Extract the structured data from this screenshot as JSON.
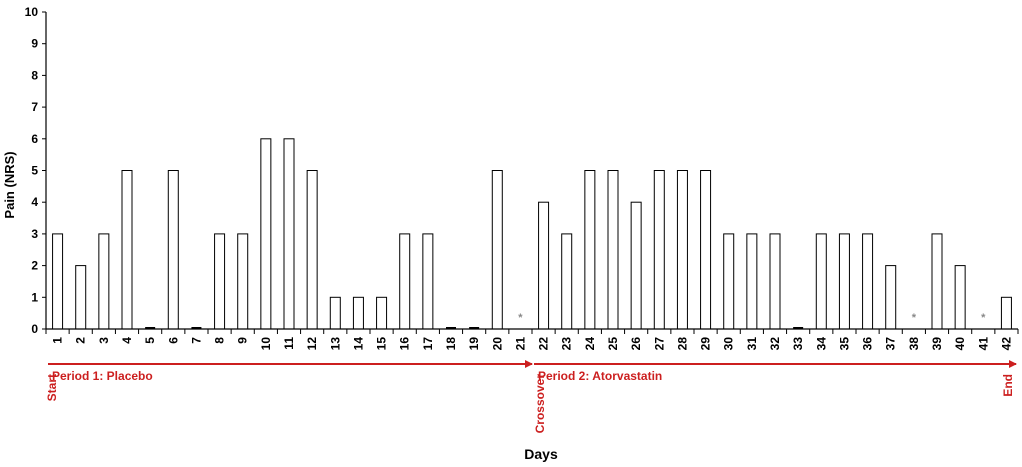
{
  "chart_data": {
    "type": "bar",
    "title": "",
    "xlabel": "Days",
    "ylabel": "Pain (NRS)",
    "ylim": [
      0,
      10
    ],
    "yticks": [
      "0",
      "1",
      "2",
      "3",
      "4",
      "5",
      "6",
      "7",
      "8",
      "9",
      "10"
    ],
    "categories": [
      "1",
      "2",
      "3",
      "4",
      "5",
      "6",
      "7",
      "8",
      "9",
      "10",
      "11",
      "12",
      "13",
      "14",
      "15",
      "16",
      "17",
      "18",
      "19",
      "20",
      "21",
      "22",
      "23",
      "24",
      "25",
      "26",
      "27",
      "28",
      "29",
      "30",
      "31",
      "32",
      "33",
      "34",
      "35",
      "36",
      "37",
      "38",
      "39",
      "40",
      "41",
      "42"
    ],
    "values": [
      3,
      2,
      3,
      5,
      0,
      5,
      0,
      3,
      3,
      6,
      6,
      5,
      1,
      1,
      1,
      3,
      3,
      0,
      0,
      5,
      null,
      4,
      3,
      5,
      5,
      4,
      5,
      5,
      5,
      3,
      3,
      3,
      0,
      3,
      3,
      3,
      2,
      null,
      3,
      2,
      null,
      1
    ],
    "missing_marker": "*",
    "missing_days": [
      "21",
      "38",
      "41"
    ],
    "grid": false,
    "periods": [
      {
        "label": "Period 1: Placebo",
        "from_day": "1",
        "to_day": "21"
      },
      {
        "label": "Period 2: Atorvastatin",
        "from_day": "22",
        "to_day": "42"
      }
    ],
    "markers": [
      {
        "label": "Start",
        "at_day": "1"
      },
      {
        "label": "Crossover",
        "at_day": "22"
      },
      {
        "label": "End",
        "at_day": "42"
      }
    ],
    "colors": {
      "bar_fill": "#ffffff",
      "bar_stroke": "#000000",
      "axis": "#000000",
      "annotation": "#cc1f1f",
      "missing_marker": "#888888"
    }
  }
}
